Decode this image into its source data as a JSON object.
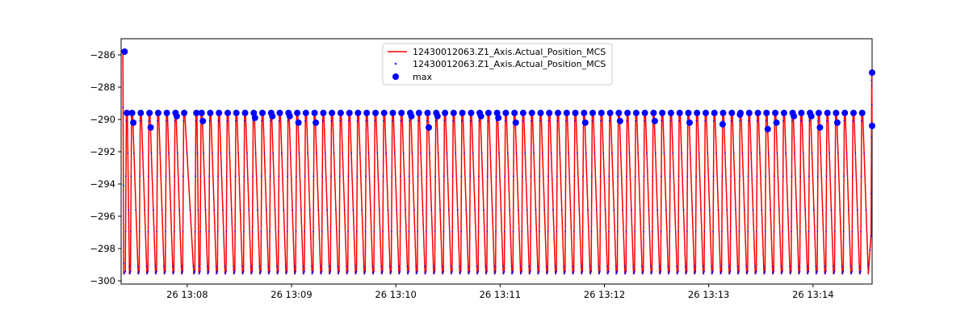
{
  "chart_data": {
    "type": "line",
    "title": "",
    "xlabel": "",
    "ylabel": "",
    "x_ticks": [
      "26 13:08",
      "26 13:09",
      "26 13:10",
      "26 13:11",
      "26 13:12",
      "26 13:13",
      "26 13:14"
    ],
    "y_ticks": [
      "−286",
      "−288",
      "−290",
      "−292",
      "−294",
      "−296",
      "−298",
      "−300"
    ],
    "x_range": [
      "2024-01-26 13:07:22",
      "2024-01-26 13:14:34"
    ],
    "ylim": [
      -300.2,
      -285.0
    ],
    "grid": false,
    "legend_position": "top-center",
    "legend": [
      {
        "label": "12430012063.Z1_Axis.Actual_Position_MCS",
        "kind": "line",
        "color": "#ff0000"
      },
      {
        "label": "12430012063.Z1_Axis.Actual_Position_MCS",
        "kind": "point",
        "color": "#0000ff"
      },
      {
        "label": "max",
        "kind": "marker",
        "color": "#0000ff"
      }
    ],
    "series": [
      {
        "name": "12430012063.Z1_Axis.Actual_Position_MCS",
        "kind": "line",
        "color": "#ff0000",
        "base": -289.6,
        "start_value": -285.8,
        "end_value": -287.1,
        "min": -299.6,
        "cycle_starts": [
          "13:07:25",
          "13:07:28",
          "13:07:33",
          "13:07:38",
          "13:07:43",
          "13:07:48",
          "13:07:53",
          "13:07:58",
          "13:08:05",
          "13:08:08",
          "13:08:13",
          "13:08:18",
          "13:08:23",
          "13:08:28",
          "13:08:33",
          "13:08:38",
          "13:08:43",
          "13:08:48",
          "13:08:53",
          "13:08:58",
          "13:09:03",
          "13:09:08",
          "13:09:13",
          "13:09:18",
          "13:09:23",
          "13:09:28",
          "13:09:33",
          "13:09:38",
          "13:09:43",
          "13:09:48",
          "13:09:53",
          "13:09:58",
          "13:10:03",
          "13:10:08",
          "13:10:13",
          "13:10:18",
          "13:10:23",
          "13:10:28",
          "13:10:33",
          "13:10:38",
          "13:10:43",
          "13:10:48",
          "13:10:53",
          "13:10:58",
          "13:11:03",
          "13:11:08",
          "13:11:13",
          "13:11:18",
          "13:11:23",
          "13:11:28",
          "13:11:33",
          "13:11:38",
          "13:11:43",
          "13:11:48",
          "13:11:53",
          "13:11:58",
          "13:12:03",
          "13:12:08",
          "13:12:13",
          "13:12:18",
          "13:12:23",
          "13:12:28",
          "13:12:33",
          "13:12:38",
          "13:12:43",
          "13:12:48",
          "13:12:53",
          "13:12:58",
          "13:13:03",
          "13:13:08",
          "13:13:13",
          "13:13:18",
          "13:13:23",
          "13:13:28",
          "13:13:33",
          "13:13:38",
          "13:13:43",
          "13:13:48",
          "13:13:53",
          "13:13:58",
          "13:14:03",
          "13:14:08",
          "13:14:13",
          "13:14:18",
          "13:14:23",
          "13:14:28"
        ]
      },
      {
        "name": "12430012063.Z1_Axis.Actual_Position_MCS",
        "kind": "scatter",
        "color": "#0000ff",
        "note_values": "sampled points along the red line"
      },
      {
        "name": "max",
        "kind": "scatter",
        "color": "#0000ff",
        "points": [
          {
            "x": "13:07:24",
            "y": -285.8
          },
          {
            "x": "13:07:29",
            "y": -290.2
          },
          {
            "x": "13:07:39",
            "y": -290.5
          },
          {
            "x": "13:07:54",
            "y": -289.8
          },
          {
            "x": "13:08:09",
            "y": -290.1
          },
          {
            "x": "13:08:39",
            "y": -289.9
          },
          {
            "x": "13:08:49",
            "y": -289.8
          },
          {
            "x": "13:08:59",
            "y": -289.8
          },
          {
            "x": "13:09:04",
            "y": -290.2
          },
          {
            "x": "13:09:14",
            "y": -290.2
          },
          {
            "x": "13:10:09",
            "y": -289.8
          },
          {
            "x": "13:10:19",
            "y": -290.5
          },
          {
            "x": "13:10:24",
            "y": -289.8
          },
          {
            "x": "13:10:49",
            "y": -289.8
          },
          {
            "x": "13:10:59",
            "y": -289.9
          },
          {
            "x": "13:11:09",
            "y": -290.2
          },
          {
            "x": "13:11:49",
            "y": -290.2
          },
          {
            "x": "13:12:09",
            "y": -290.1
          },
          {
            "x": "13:12:29",
            "y": -290.1
          },
          {
            "x": "13:12:49",
            "y": -290.2
          },
          {
            "x": "13:13:08",
            "y": -290.3
          },
          {
            "x": "13:13:18",
            "y": -289.7
          },
          {
            "x": "13:13:34",
            "y": -290.6
          },
          {
            "x": "13:13:39",
            "y": -290.2
          },
          {
            "x": "13:13:49",
            "y": -289.8
          },
          {
            "x": "13:13:59",
            "y": -289.8
          },
          {
            "x": "13:14:04",
            "y": -290.5
          },
          {
            "x": "13:14:14",
            "y": -290.2
          },
          {
            "x": "13:14:34",
            "y": -290.4
          },
          {
            "x": "13:14:34",
            "y": -287.1
          }
        ]
      }
    ]
  }
}
